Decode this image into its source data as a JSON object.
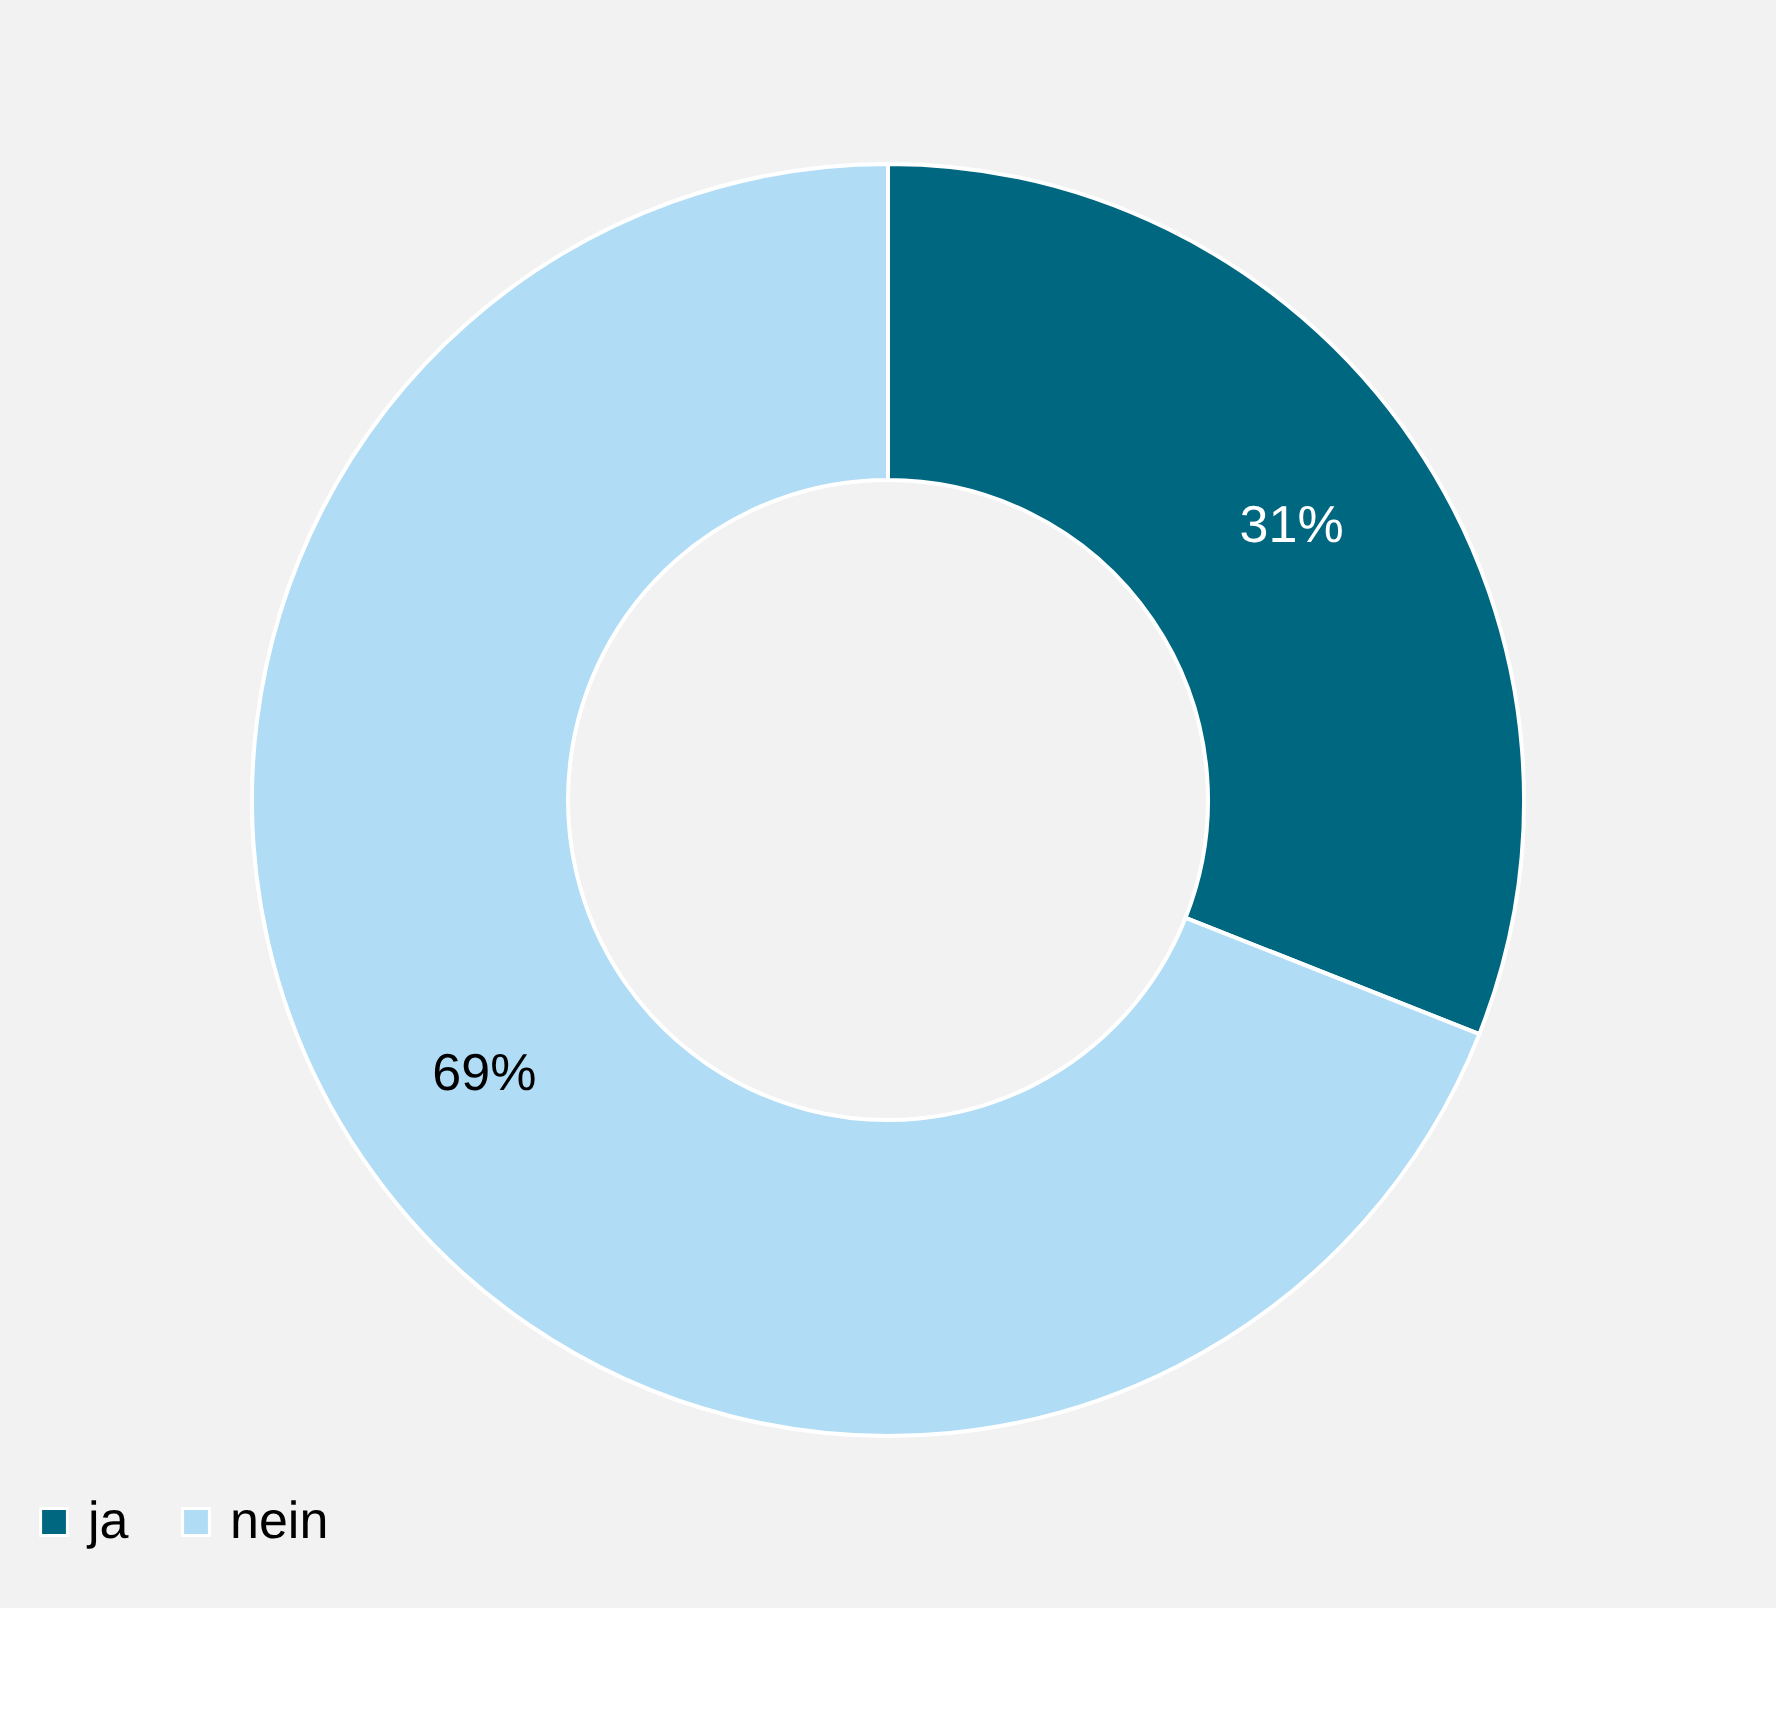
{
  "chart_data": {
    "type": "donut",
    "categories": [
      "ja",
      "nein"
    ],
    "values": [
      31,
      69
    ],
    "colors": [
      "#006780",
      "#b0dcf5"
    ],
    "value_labels": [
      "31%",
      "69%"
    ],
    "legend": "bottom"
  }
}
